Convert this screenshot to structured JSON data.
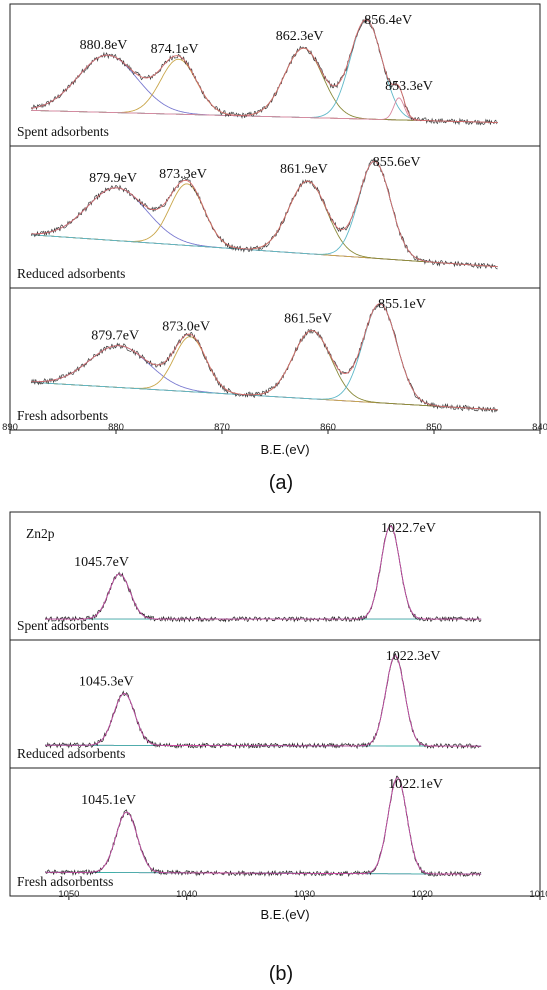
{
  "figures": [
    {
      "caption": "(a)",
      "xlabel": "B.E.(eV)",
      "xlim": [
        890,
        840
      ],
      "xticks": [
        890,
        880,
        870,
        860,
        850,
        840
      ],
      "corner_label": "",
      "colors": {
        "raw": "#3a3a3a",
        "envelope": "#d36d6d",
        "background": "#c06fb8",
        "fit": [
          "#7a7ad0",
          "#c9a64a",
          "#8a8a3a",
          "#5fb8c8",
          "#d98aa0"
        ]
      },
      "panels": [
        {
          "label": "Spent adsorbents",
          "x_range": [
            888,
            844
          ],
          "background_start": 0.16,
          "background_end": 0.05,
          "peaks": [
            {
              "label": "880.8eV",
              "center": 880.8,
              "height": 0.52,
              "width": 2.8
            },
            {
              "label": "874.1eV",
              "center": 874.1,
              "height": 0.5,
              "width": 1.7
            },
            {
              "label": "862.3eV",
              "center": 862.3,
              "height": 0.63,
              "width": 1.8
            },
            {
              "label": "856.4eV",
              "center": 856.4,
              "height": 0.9,
              "width": 1.5
            },
            {
              "label": "853.3eV",
              "center": 853.3,
              "height": 0.2,
              "width": 0.5
            }
          ]
        },
        {
          "label": "Reduced adsorbents",
          "x_range": [
            888,
            844
          ],
          "background_start": 0.32,
          "background_end": 0.03,
          "peaks": [
            {
              "label": "879.9eV",
              "center": 879.9,
              "height": 0.48,
              "width": 2.8
            },
            {
              "label": "873.3eV",
              "center": 873.3,
              "height": 0.56,
              "width": 1.6
            },
            {
              "label": "861.9eV",
              "center": 861.9,
              "height": 0.66,
              "width": 1.8
            },
            {
              "label": "855.6eV",
              "center": 855.6,
              "height": 0.88,
              "width": 1.5
            }
          ]
        },
        {
          "label": "Fresh adsorbents",
          "x_range": [
            888,
            844
          ],
          "background_start": 0.27,
          "background_end": 0.02,
          "peaks": [
            {
              "label": "879.7eV",
              "center": 879.7,
              "height": 0.38,
              "width": 2.8
            },
            {
              "label": "873.0eV",
              "center": 873.0,
              "height": 0.5,
              "width": 1.5
            },
            {
              "label": "861.5eV",
              "center": 861.5,
              "height": 0.62,
              "width": 1.8
            },
            {
              "label": "855.1eV",
              "center": 855.1,
              "height": 0.9,
              "width": 1.6
            }
          ]
        }
      ]
    },
    {
      "caption": "(b)",
      "xlabel": "B.E.(eV)",
      "xlim": [
        1055,
        1010
      ],
      "xticks": [
        1050,
        1040,
        1030,
        1020,
        1010
      ],
      "corner_label": "Zn2p",
      "colors": {
        "raw": "#222222",
        "envelope": "#c84aa0",
        "background": "#c06fb8",
        "fit": [
          "#3fb0a8",
          "#3fb0a8"
        ]
      },
      "panels": [
        {
          "label": "Spent adsorbents",
          "x_range": [
            1052,
            1015
          ],
          "background_start": 0.03,
          "background_end": 0.03,
          "peaks": [
            {
              "label": "1045.7eV",
              "center": 1045.7,
              "height": 0.47,
              "width": 0.9
            },
            {
              "label": "1022.7eV",
              "center": 1022.7,
              "height": 0.97,
              "width": 0.8
            }
          ]
        },
        {
          "label": "Reduced adsorbents",
          "x_range": [
            1052,
            1015
          ],
          "background_start": 0.05,
          "background_end": 0.04,
          "peaks": [
            {
              "label": "1045.3eV",
              "center": 1045.3,
              "height": 0.54,
              "width": 0.9
            },
            {
              "label": "1022.3eV",
              "center": 1022.3,
              "height": 0.94,
              "width": 0.8
            }
          ]
        },
        {
          "label": "Fresh adsorbents",
          "label_display": "Fresh adsorbentss",
          "x_range": [
            1052,
            1015
          ],
          "background_start": 0.06,
          "background_end": 0.04,
          "peaks": [
            {
              "label": "1045.1eV",
              "center": 1045.1,
              "height": 0.63,
              "width": 0.9
            },
            {
              "label": "1022.1eV",
              "center": 1022.1,
              "height": 1.0,
              "width": 0.8
            }
          ]
        }
      ]
    }
  ]
}
